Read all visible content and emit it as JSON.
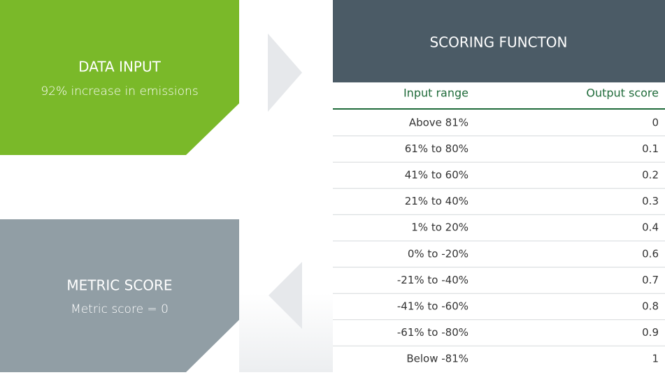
{
  "data_input": {
    "title": "DATA INPUT",
    "text": "92% increase in emissions"
  },
  "metric_score": {
    "title": "METRIC SCORE",
    "text": "Metric score = 0"
  },
  "table": {
    "title": "SCORING FUNCTON",
    "headers": [
      "Input range",
      "Output score"
    ],
    "rows": [
      [
        "Above 81%",
        "0"
      ],
      [
        "61% to 80%",
        "0.1"
      ],
      [
        "41% to 60%",
        "0.2"
      ],
      [
        "21% to 40%",
        "0.3"
      ],
      [
        "1% to 20%",
        "0.4"
      ],
      [
        "0% to -20%",
        "0.6"
      ],
      [
        "-21% to -40%",
        "0.7"
      ],
      [
        "-41% to -60%",
        "0.8"
      ],
      [
        "-61% to -80%",
        "0.9"
      ],
      [
        "Below -81%",
        "1"
      ]
    ]
  }
}
